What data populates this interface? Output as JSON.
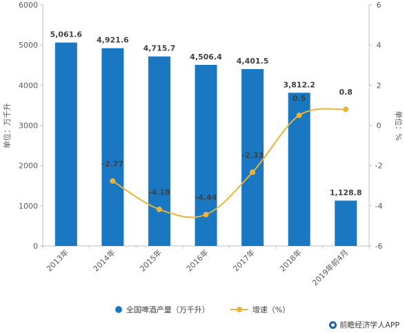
{
  "chart_data": {
    "type": "bar",
    "categories": [
      "2013年",
      "2014年",
      "2015年",
      "2016年",
      "2017年",
      "2018年",
      "2019年前4月"
    ],
    "series": [
      {
        "name": "全国啤酒产量（万千升）",
        "type": "bar",
        "axis": "left",
        "values": [
          5061.6,
          4921.6,
          4715.7,
          4506.4,
          4401.5,
          3812.2,
          1128.8
        ],
        "labels": [
          "5,061.6",
          "4,921.6",
          "4,715.7",
          "4,506.4",
          "4,401.5",
          "3,812.2",
          "1,128.8"
        ]
      },
      {
        "name": "增速（%）",
        "type": "line",
        "axis": "right",
        "values": [
          null,
          -2.77,
          -4.18,
          -4.44,
          -2.33,
          0.5,
          0.8
        ],
        "labels": [
          "",
          "-2.77",
          "-4.18",
          "-4.44",
          "-2.33",
          "0.5",
          "0.8"
        ]
      }
    ],
    "ylabel": "单位：万千升",
    "y2label": "单位：%",
    "ylim": [
      0,
      6000
    ],
    "y2lim": [
      -6,
      6
    ],
    "yticks": [
      "0",
      "1000",
      "2000",
      "3000",
      "4000",
      "5000",
      "6000"
    ],
    "y2ticks": [
      "-6",
      "-4",
      "-2",
      "0",
      "2",
      "4",
      "6"
    ],
    "grid": false,
    "legend_position": "bottom",
    "colors": {
      "bar": "#1a78c2",
      "line": "#e8b43a"
    }
  },
  "source": "前瞻经济学人APP"
}
